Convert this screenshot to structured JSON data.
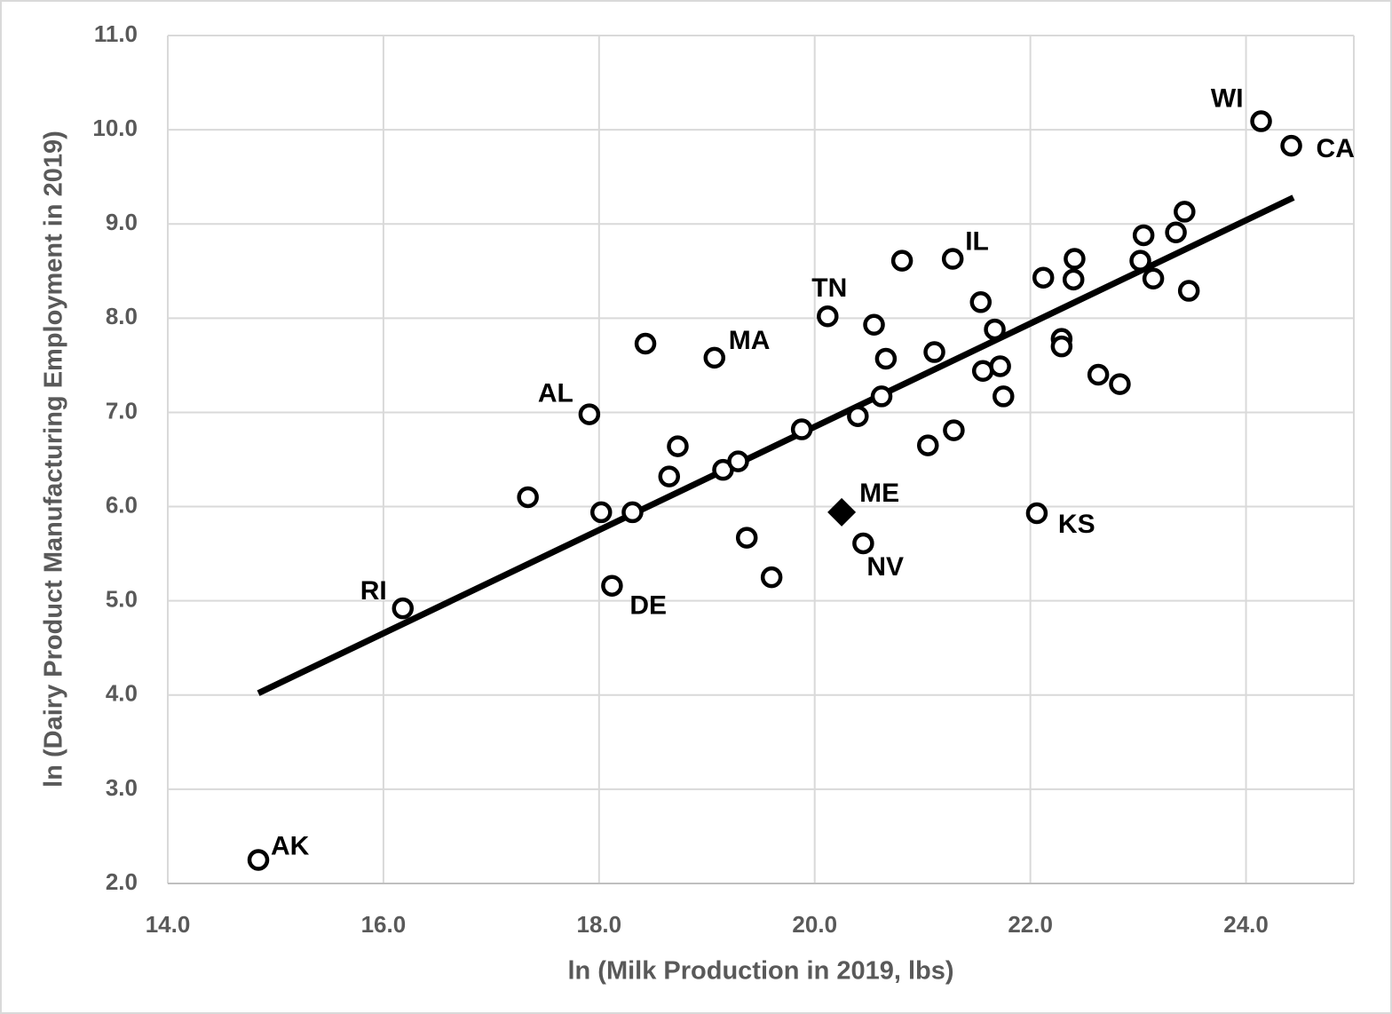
{
  "chart_data": {
    "type": "scatter",
    "x_label": "ln (Milk Production in 2019, lbs)",
    "y_label": "ln (Dairy Product Manufacturing Employment in 2019)",
    "xlim": [
      14,
      25
    ],
    "ylim": [
      2,
      11
    ],
    "xticks": [
      {
        "value": 14,
        "label": "14.0"
      },
      {
        "value": 16,
        "label": "16.0"
      },
      {
        "value": 18,
        "label": "18.0"
      },
      {
        "value": 20,
        "label": "20.0"
      },
      {
        "value": 22,
        "label": "22.0"
      },
      {
        "value": 24,
        "label": "24.0"
      }
    ],
    "yticks": [
      {
        "value": 2,
        "label": "2.0"
      },
      {
        "value": 3,
        "label": "3.0"
      },
      {
        "value": 4,
        "label": "4.0"
      },
      {
        "value": 5,
        "label": "5.0"
      },
      {
        "value": 6,
        "label": "6.0"
      },
      {
        "value": 7,
        "label": "7.0"
      },
      {
        "value": 8,
        "label": "8.0"
      },
      {
        "value": 9,
        "label": "9.0"
      },
      {
        "value": 10,
        "label": "10.0"
      },
      {
        "value": 11,
        "label": "11.0"
      }
    ],
    "grid": true,
    "series": [
      {
        "color": "#000000",
        "marker": "circle",
        "x": [
          14.84,
          16.18,
          17.34,
          17.91,
          18.02,
          18.12,
          18.31,
          18.43,
          18.65,
          18.73,
          19.07,
          19.15,
          19.29,
          19.37,
          19.6,
          19.88,
          20.12,
          20.4,
          20.45,
          20.55,
          20.62,
          20.66,
          20.81,
          21.05,
          21.11,
          21.28,
          21.29,
          21.54,
          21.56,
          21.67,
          21.72,
          21.75,
          22.06,
          22.12,
          22.29,
          22.29,
          22.4,
          22.41,
          22.63,
          22.83,
          23.02,
          23.05,
          23.14,
          23.35,
          23.43,
          23.47,
          24.14,
          24.42
        ],
        "values": [
          2.25,
          4.92,
          6.1,
          6.98,
          5.94,
          5.16,
          5.94,
          7.73,
          6.32,
          6.64,
          7.58,
          6.39,
          6.48,
          5.67,
          5.25,
          6.82,
          8.02,
          6.96,
          5.61,
          7.93,
          7.17,
          7.57,
          8.61,
          6.65,
          7.64,
          8.63,
          6.81,
          8.17,
          7.44,
          7.88,
          7.49,
          7.17,
          5.93,
          8.43,
          7.78,
          7.7,
          8.41,
          8.63,
          7.4,
          7.3,
          8.61,
          8.88,
          8.42,
          8.91,
          9.13,
          8.29,
          10.09,
          9.83
        ],
        "labels": [
          "AK",
          "RI",
          null,
          "AL",
          null,
          "DE",
          null,
          null,
          null,
          null,
          "MA",
          null,
          null,
          null,
          null,
          null,
          "TN",
          null,
          "NV",
          null,
          null,
          null,
          null,
          null,
          null,
          "IL",
          null,
          null,
          null,
          null,
          null,
          null,
          "KS",
          null,
          null,
          null,
          null,
          null,
          null,
          null,
          null,
          null,
          null,
          null,
          null,
          null,
          "WI",
          "CA"
        ]
      },
      {
        "color": "#000000",
        "marker": "diamond",
        "x": [
          20.25
        ],
        "values": [
          5.94
        ],
        "labels": [
          "ME"
        ]
      }
    ],
    "trendline": {
      "color": "#000000",
      "x": [
        14.84,
        24.44
      ],
      "y": [
        4.02,
        9.28
      ]
    }
  }
}
